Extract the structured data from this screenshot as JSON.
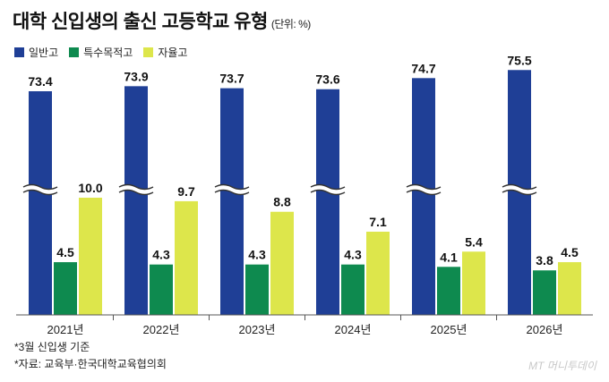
{
  "title": "대학 신입생의 출신 고등학교 유형",
  "unit": "(단위: %)",
  "footnotes": [
    "*3월 신입생 기준",
    "*자료: 교육부·한국대학교육협의회"
  ],
  "watermark": "MT 머니투데이",
  "colors": {
    "general": "#1f3f96",
    "special": "#0e8a4f",
    "autonomous": "#dde64b",
    "axis": "#555555",
    "break": "#ffffff"
  },
  "chart_data": {
    "type": "bar",
    "title": "대학 신입생의 출신 고등학교 유형",
    "categories": [
      "2021년",
      "2022년",
      "2023년",
      "2024년",
      "2025년",
      "2026년"
    ],
    "series": [
      {
        "name": "일반고",
        "values": [
          73.4,
          73.9,
          73.7,
          73.6,
          74.7,
          75.5
        ]
      },
      {
        "name": "특수목적고",
        "values": [
          4.5,
          4.3,
          4.3,
          4.3,
          4.1,
          3.8
        ]
      },
      {
        "name": "자율고",
        "values": [
          10.0,
          9.7,
          8.8,
          7.1,
          5.4,
          4.5
        ]
      }
    ],
    "value_labels": [
      [
        "73.4",
        "73.9",
        "73.7",
        "73.6",
        "74.7",
        "75.5"
      ],
      [
        "4.5",
        "4.3",
        "4.3",
        "4.3",
        "4.1",
        "3.8"
      ],
      [
        "10.0",
        "9.7",
        "8.8",
        "7.1",
        "5.4",
        "4.5"
      ]
    ],
    "axis_break": true,
    "legend_position": "top-left",
    "grid": false
  }
}
